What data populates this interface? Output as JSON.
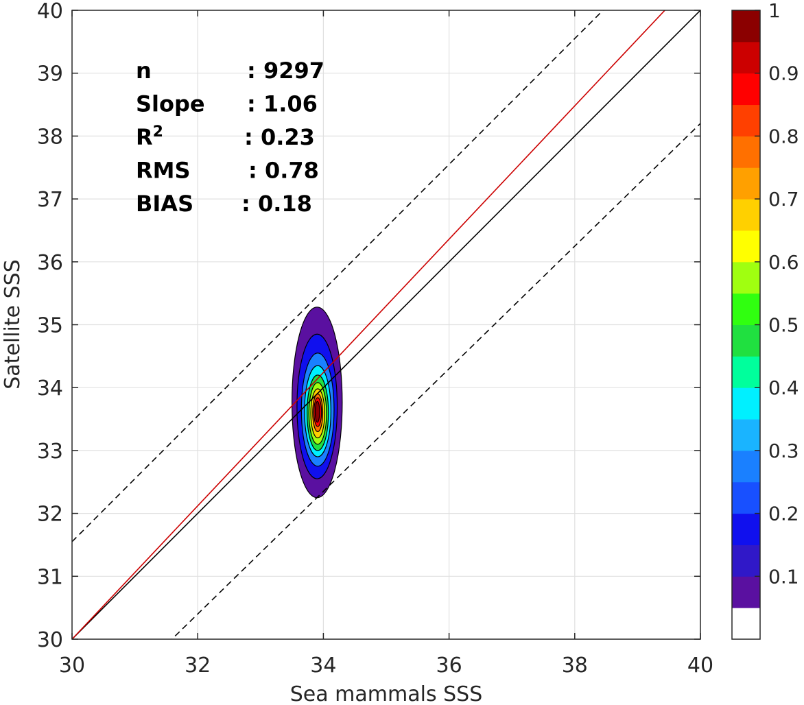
{
  "chart_data": {
    "type": "contour",
    "xlabel": "Sea mammals SSS",
    "ylabel": "Satellite SSS",
    "xlim": [
      30,
      40
    ],
    "ylim": [
      30,
      40
    ],
    "xticks": [
      "30",
      "32",
      "34",
      "36",
      "38",
      "40"
    ],
    "yticks": [
      "30",
      "31",
      "32",
      "33",
      "34",
      "35",
      "36",
      "37",
      "38",
      "39",
      "40"
    ],
    "grid": true,
    "stats": [
      {
        "label": "n",
        "value": ": 9297"
      },
      {
        "label": "Slope",
        "value": ": 1.06"
      },
      {
        "label": "R",
        "sup": "2",
        "value": ": 0.23"
      },
      {
        "label": "RMS",
        "value": ": 0.78"
      },
      {
        "label": "BIAS",
        "value": ": 0.18"
      }
    ],
    "lines": [
      {
        "kind": "one-to-one",
        "color": "#000000",
        "style": "solid",
        "points": [
          [
            30,
            30
          ],
          [
            40,
            40
          ]
        ]
      },
      {
        "kind": "regression",
        "color": "#cc0000",
        "style": "solid",
        "points": [
          [
            30,
            30.0
          ],
          [
            40,
            40.6
          ]
        ]
      },
      {
        "kind": "upper-bound",
        "color": "#000000",
        "style": "dashed",
        "points": [
          [
            30,
            31.55
          ],
          [
            40,
            41.55
          ]
        ]
      },
      {
        "kind": "lower-bound",
        "color": "#000000",
        "style": "dashed",
        "points": [
          [
            30,
            28.45
          ],
          [
            40,
            38.2
          ]
        ]
      }
    ],
    "density": {
      "center": [
        33.9,
        33.68
      ],
      "contours": [
        {
          "level": 0.05,
          "x": [
            33.5,
            34.3
          ],
          "y": [
            32.25,
            35.28
          ]
        },
        {
          "level": 0.15,
          "x": [
            33.58,
            34.22
          ],
          "y": [
            32.55,
            34.85
          ]
        },
        {
          "level": 0.25,
          "x": [
            33.65,
            34.17
          ],
          "y": [
            32.75,
            34.55
          ]
        },
        {
          "level": 0.35,
          "x": [
            33.7,
            34.12
          ],
          "y": [
            32.9,
            34.35
          ]
        },
        {
          "level": 0.45,
          "x": [
            33.74,
            34.08
          ],
          "y": [
            33.0,
            34.2
          ]
        },
        {
          "level": 0.55,
          "x": [
            33.77,
            34.05
          ],
          "y": [
            33.1,
            34.08
          ]
        },
        {
          "level": 0.65,
          "x": [
            33.8,
            34.02
          ],
          "y": [
            33.2,
            33.98
          ]
        },
        {
          "level": 0.75,
          "x": [
            33.83,
            33.99
          ],
          "y": [
            33.3,
            33.9
          ]
        },
        {
          "level": 0.85,
          "x": [
            33.85,
            33.97
          ],
          "y": [
            33.38,
            33.84
          ]
        },
        {
          "level": 0.95,
          "x": [
            33.87,
            33.94
          ],
          "y": [
            33.45,
            33.78
          ]
        }
      ]
    },
    "colorbar": {
      "ticks": [
        "0.1",
        "0.2",
        "0.3",
        "0.4",
        "0.5",
        "0.6",
        "0.7",
        "0.8",
        "0.9",
        "1"
      ],
      "tick_values": [
        0.1,
        0.2,
        0.3,
        0.4,
        0.5,
        0.6,
        0.7,
        0.8,
        0.9,
        1.0
      ],
      "range": [
        0.0,
        1.0
      ],
      "colors": [
        "#ffffff",
        "#5a10a0",
        "#3018c8",
        "#1010ee",
        "#1850ff",
        "#1a80ff",
        "#1ab4ff",
        "#00f0ff",
        "#00ff9c",
        "#20e040",
        "#30ff10",
        "#a0ff10",
        "#ffff00",
        "#ffd000",
        "#ffa000",
        "#ff7000",
        "#ff4000",
        "#ff0000",
        "#cc0000",
        "#8b0000"
      ]
    }
  }
}
